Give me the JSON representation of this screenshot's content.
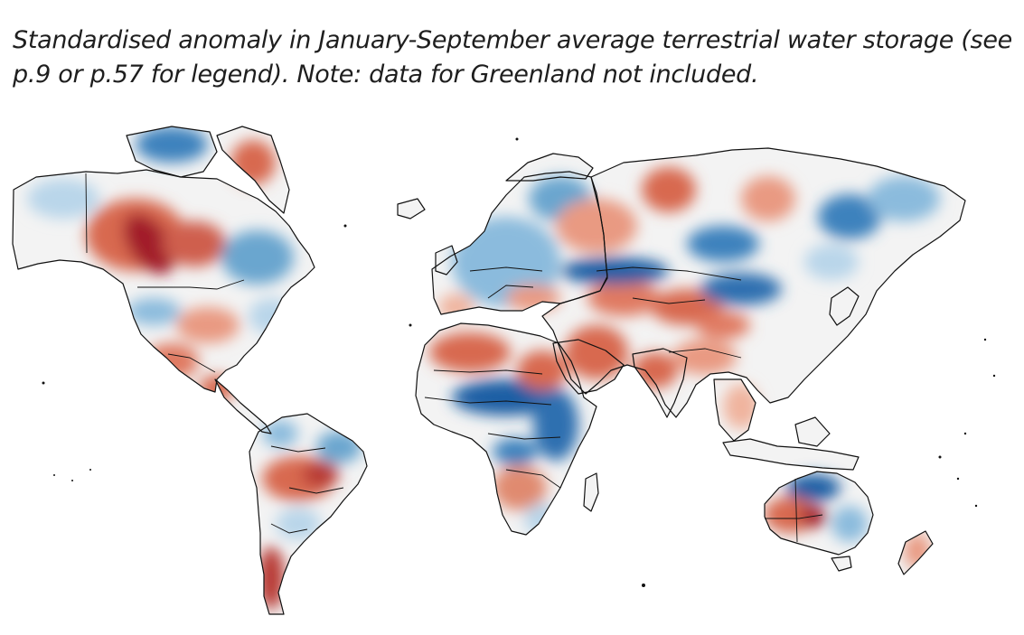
{
  "caption": {
    "line1": "Standardised anomaly in January-September average terrestrial water storage (see",
    "line2": "p.9 or p.57 for legend). Note: data for Greenland not included."
  },
  "map": {
    "variable": "terrestrial water storage",
    "period": "January-September",
    "excluded_region": "Greenland",
    "colors": {
      "strong_negative": "#a21f2a",
      "negative": "#d8694f",
      "weak_negative": "#f0b49e",
      "neutral": "#f4f4f4",
      "weak_positive": "#b9d6ea",
      "positive": "#5f9fcc",
      "strong_positive": "#1e5ea4",
      "border": "#111111"
    },
    "regions": [
      {
        "region": "Western Canada",
        "anomaly": "strong negative"
      },
      {
        "region": "Alaska",
        "anomaly": "mixed"
      },
      {
        "region": "Eastern Canada",
        "anomaly": "positive"
      },
      {
        "region": "USA",
        "anomaly": "mixed"
      },
      {
        "region": "Mexico",
        "anomaly": "negative"
      },
      {
        "region": "Central South America",
        "anomaly": "negative"
      },
      {
        "region": "Eastern Brazil",
        "anomaly": "positive"
      },
      {
        "region": "Patagonia",
        "anomaly": "strong negative"
      },
      {
        "region": "Europe",
        "anomaly": "positive"
      },
      {
        "region": "North Africa",
        "anomaly": "negative"
      },
      {
        "region": "Sahel",
        "anomaly": "strong positive"
      },
      {
        "region": "East Africa",
        "anomaly": "strong positive"
      },
      {
        "region": "Southern Africa",
        "anomaly": "mixed"
      },
      {
        "region": "Middle East",
        "anomaly": "negative"
      },
      {
        "region": "Central Asia",
        "anomaly": "mixed"
      },
      {
        "region": "Siberia",
        "anomaly": "mixed"
      },
      {
        "region": "India",
        "anomaly": "negative"
      },
      {
        "region": "China",
        "anomaly": "mixed"
      },
      {
        "region": "Northern Australia",
        "anomaly": "strong positive"
      },
      {
        "region": "Western Australia",
        "anomaly": "negative"
      },
      {
        "region": "New Zealand",
        "anomaly": "negative"
      }
    ]
  }
}
